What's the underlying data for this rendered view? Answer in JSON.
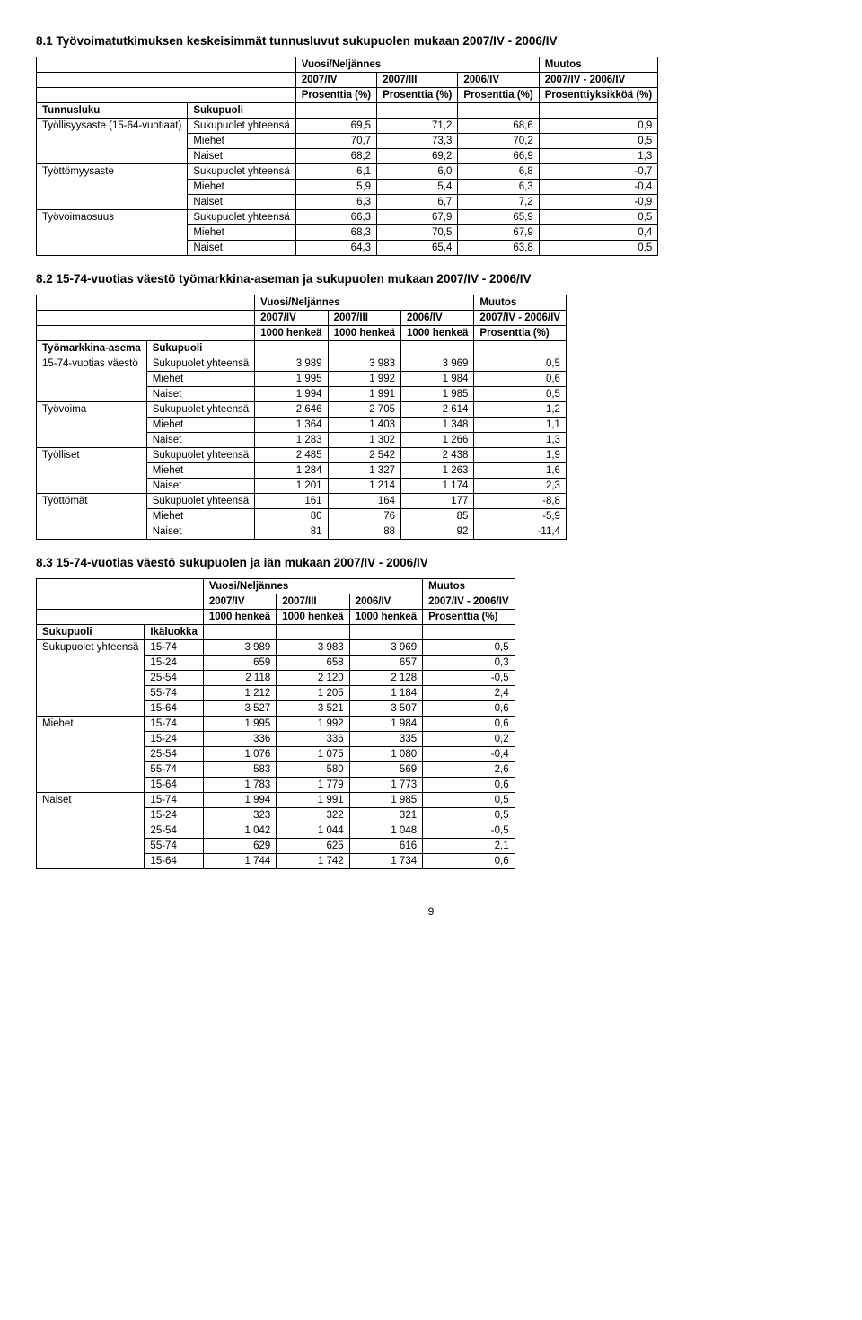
{
  "section1": {
    "title": "8.1 Työvoimatutkimuksen keskeisimmät tunnusluvut sukupuolen mukaan 2007/IV - 2006/IV",
    "header": {
      "group": "Vuosi/Neljännes",
      "muutos": "Muutos",
      "cols": [
        "2007/IV",
        "2007/III",
        "2006/IV",
        "2007/IV - 2006/IV"
      ],
      "units": [
        "Prosenttia (%)",
        "Prosenttia (%)",
        "Prosenttia (%)",
        "Prosenttiyksikköä (%)"
      ]
    },
    "rowlabels": {
      "tunnusluku": "Tunnusluku",
      "sukupuoli": "Sukupuoli"
    },
    "groups": [
      {
        "label": "Työllisyysaste (15-64-vuotiaat)",
        "rows": [
          {
            "sp": "Sukupuolet yhteensä",
            "v": [
              "69,5",
              "71,2",
              "68,6",
              "0,9"
            ]
          },
          {
            "sp": "Miehet",
            "v": [
              "70,7",
              "73,3",
              "70,2",
              "0,5"
            ]
          },
          {
            "sp": "Naiset",
            "v": [
              "68,2",
              "69,2",
              "66,9",
              "1,3"
            ]
          }
        ]
      },
      {
        "label": "Työttömyysaste",
        "rows": [
          {
            "sp": "Sukupuolet yhteensä",
            "v": [
              "6,1",
              "6,0",
              "6,8",
              "-0,7"
            ]
          },
          {
            "sp": "Miehet",
            "v": [
              "5,9",
              "5,4",
              "6,3",
              "-0,4"
            ]
          },
          {
            "sp": "Naiset",
            "v": [
              "6,3",
              "6,7",
              "7,2",
              "-0,9"
            ]
          }
        ]
      },
      {
        "label": "Työvoimaosuus",
        "rows": [
          {
            "sp": "Sukupuolet yhteensä",
            "v": [
              "66,3",
              "67,9",
              "65,9",
              "0,5"
            ]
          },
          {
            "sp": "Miehet",
            "v": [
              "68,3",
              "70,5",
              "67,9",
              "0,4"
            ]
          },
          {
            "sp": "Naiset",
            "v": [
              "64,3",
              "65,4",
              "63,8",
              "0,5"
            ]
          }
        ]
      }
    ]
  },
  "section2": {
    "title": "8.2 15-74-vuotias väestö työmarkkina-aseman ja sukupuolen mukaan 2007/IV - 2006/IV",
    "header": {
      "group": "Vuosi/Neljännes",
      "muutos": "Muutos",
      "cols": [
        "2007/IV",
        "2007/III",
        "2006/IV",
        "2007/IV - 2006/IV"
      ],
      "units": [
        "1000 henkeä",
        "1000 henkeä",
        "1000 henkeä",
        "Prosenttia (%)"
      ]
    },
    "rowlabels": {
      "asema": "Työmarkkina-asema",
      "sukupuoli": "Sukupuoli"
    },
    "groups": [
      {
        "label": "15-74-vuotias väestö",
        "rows": [
          {
            "sp": "Sukupuolet yhteensä",
            "v": [
              "3 989",
              "3 983",
              "3 969",
              "0,5"
            ]
          },
          {
            "sp": "Miehet",
            "v": [
              "1 995",
              "1 992",
              "1 984",
              "0,6"
            ]
          },
          {
            "sp": "Naiset",
            "v": [
              "1 994",
              "1 991",
              "1 985",
              "0,5"
            ]
          }
        ]
      },
      {
        "label": "Työvoima",
        "rows": [
          {
            "sp": "Sukupuolet yhteensä",
            "v": [
              "2 646",
              "2 705",
              "2 614",
              "1,2"
            ]
          },
          {
            "sp": "Miehet",
            "v": [
              "1 364",
              "1 403",
              "1 348",
              "1,1"
            ]
          },
          {
            "sp": "Naiset",
            "v": [
              "1 283",
              "1 302",
              "1 266",
              "1,3"
            ]
          }
        ]
      },
      {
        "label": "Työlliset",
        "rows": [
          {
            "sp": "Sukupuolet yhteensä",
            "v": [
              "2 485",
              "2 542",
              "2 438",
              "1,9"
            ]
          },
          {
            "sp": "Miehet",
            "v": [
              "1 284",
              "1 327",
              "1 263",
              "1,6"
            ]
          },
          {
            "sp": "Naiset",
            "v": [
              "1 201",
              "1 214",
              "1 174",
              "2,3"
            ]
          }
        ]
      },
      {
        "label": "Työttömät",
        "rows": [
          {
            "sp": "Sukupuolet yhteensä",
            "v": [
              "161",
              "164",
              "177",
              "-8,8"
            ]
          },
          {
            "sp": "Miehet",
            "v": [
              "80",
              "76",
              "85",
              "-5,9"
            ]
          },
          {
            "sp": "Naiset",
            "v": [
              "81",
              "88",
              "92",
              "-11,4"
            ]
          }
        ]
      }
    ]
  },
  "section3": {
    "title": "8.3 15-74-vuotias väestö sukupuolen ja iän mukaan 2007/IV - 2006/IV",
    "header": {
      "group": "Vuosi/Neljännes",
      "muutos": "Muutos",
      "cols": [
        "2007/IV",
        "2007/III",
        "2006/IV",
        "2007/IV - 2006/IV"
      ],
      "units": [
        "1000 henkeä",
        "1000 henkeä",
        "1000 henkeä",
        "Prosenttia (%)"
      ]
    },
    "rowlabels": {
      "sukupuoli": "Sukupuoli",
      "ika": "Ikäluokka"
    },
    "groups": [
      {
        "label": "Sukupuolet yhteensä",
        "rows": [
          {
            "age": "15-74",
            "v": [
              "3 989",
              "3 983",
              "3 969",
              "0,5"
            ]
          },
          {
            "age": "15-24",
            "v": [
              "659",
              "658",
              "657",
              "0,3"
            ]
          },
          {
            "age": "25-54",
            "v": [
              "2 118",
              "2 120",
              "2 128",
              "-0,5"
            ]
          },
          {
            "age": "55-74",
            "v": [
              "1 212",
              "1 205",
              "1 184",
              "2,4"
            ]
          },
          {
            "age": "15-64",
            "v": [
              "3 527",
              "3 521",
              "3 507",
              "0,6"
            ]
          }
        ]
      },
      {
        "label": "Miehet",
        "rows": [
          {
            "age": "15-74",
            "v": [
              "1 995",
              "1 992",
              "1 984",
              "0,6"
            ]
          },
          {
            "age": "15-24",
            "v": [
              "336",
              "336",
              "335",
              "0,2"
            ]
          },
          {
            "age": "25-54",
            "v": [
              "1 076",
              "1 075",
              "1 080",
              "-0,4"
            ]
          },
          {
            "age": "55-74",
            "v": [
              "583",
              "580",
              "569",
              "2,6"
            ]
          },
          {
            "age": "15-64",
            "v": [
              "1 783",
              "1 779",
              "1 773",
              "0,6"
            ]
          }
        ]
      },
      {
        "label": "Naiset",
        "rows": [
          {
            "age": "15-74",
            "v": [
              "1 994",
              "1 991",
              "1 985",
              "0,5"
            ]
          },
          {
            "age": "15-24",
            "v": [
              "323",
              "322",
              "321",
              "0,5"
            ]
          },
          {
            "age": "25-54",
            "v": [
              "1 042",
              "1 044",
              "1 048",
              "-0,5"
            ]
          },
          {
            "age": "55-74",
            "v": [
              "629",
              "625",
              "616",
              "2,1"
            ]
          },
          {
            "age": "15-64",
            "v": [
              "1 744",
              "1 742",
              "1 734",
              "0,6"
            ]
          }
        ]
      }
    ]
  },
  "pagenum": "9"
}
